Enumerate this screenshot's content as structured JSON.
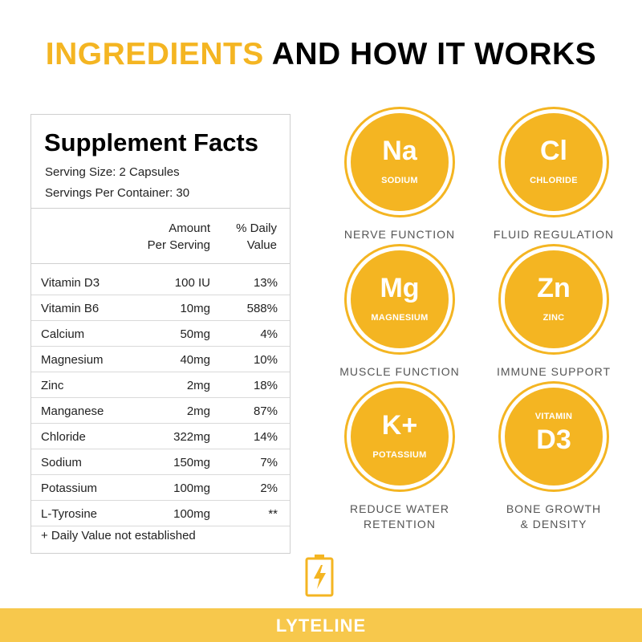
{
  "headline": {
    "accent": "INGREDIENTS",
    "rest": "AND HOW IT WORKS"
  },
  "colors": {
    "accent": "#f4b522",
    "footer_bar": "#f7c84c",
    "text_dark": "#000000",
    "caption_gray": "#555555"
  },
  "facts": {
    "title": "Supplement Facts",
    "serving_size": "Serving Size: 2 Capsules",
    "servings_per_container": "Servings Per Container: 30",
    "header_amount_1": "Amount",
    "header_amount_2": "Per Serving",
    "header_dv_1": "% Daily",
    "header_dv_2": "Value",
    "rows": [
      {
        "name": "Vitamin D3",
        "amount": "100 IU",
        "dv": "13%"
      },
      {
        "name": "Vitamin B6",
        "amount": "10mg",
        "dv": "588%"
      },
      {
        "name": "Calcium",
        "amount": "50mg",
        "dv": "4%"
      },
      {
        "name": "Magnesium",
        "amount": "40mg",
        "dv": "10%"
      },
      {
        "name": "Zinc",
        "amount": "2mg",
        "dv": "18%"
      },
      {
        "name": "Manganese",
        "amount": "2mg",
        "dv": "87%"
      },
      {
        "name": "Chloride",
        "amount": "322mg",
        "dv": "14%"
      },
      {
        "name": "Sodium",
        "amount": "150mg",
        "dv": "7%"
      },
      {
        "name": "Potassium",
        "amount": "100mg",
        "dv": "2%"
      },
      {
        "name": "L-Tyrosine",
        "amount": "100mg",
        "dv": "**"
      }
    ],
    "footnote": "+ Daily Value not established"
  },
  "minerals": [
    {
      "symbol": "Na",
      "name": "SODIUM",
      "caption_1": "NERVE FUNCTION",
      "caption_2": ""
    },
    {
      "symbol": "Cl",
      "name": "CHLORIDE",
      "caption_1": "FLUID REGULATION",
      "caption_2": ""
    },
    {
      "symbol": "Mg",
      "name": "MAGNESIUM",
      "caption_1": "MUSCLE FUNCTION",
      "caption_2": ""
    },
    {
      "symbol": "Zn",
      "name": "ZINC",
      "caption_1": "IMMUNE SUPPORT",
      "caption_2": ""
    },
    {
      "symbol": "K+",
      "name": "POTASSIUM",
      "caption_1": "REDUCE WATER",
      "caption_2": "RETENTION"
    },
    {
      "prefix": "VITAMIN",
      "symbol": "D3",
      "caption_1": "BONE GROWTH",
      "caption_2": "& DENSITY"
    }
  ],
  "brand": {
    "icon": "battery-lightning-icon",
    "name": "LYTELINE"
  }
}
